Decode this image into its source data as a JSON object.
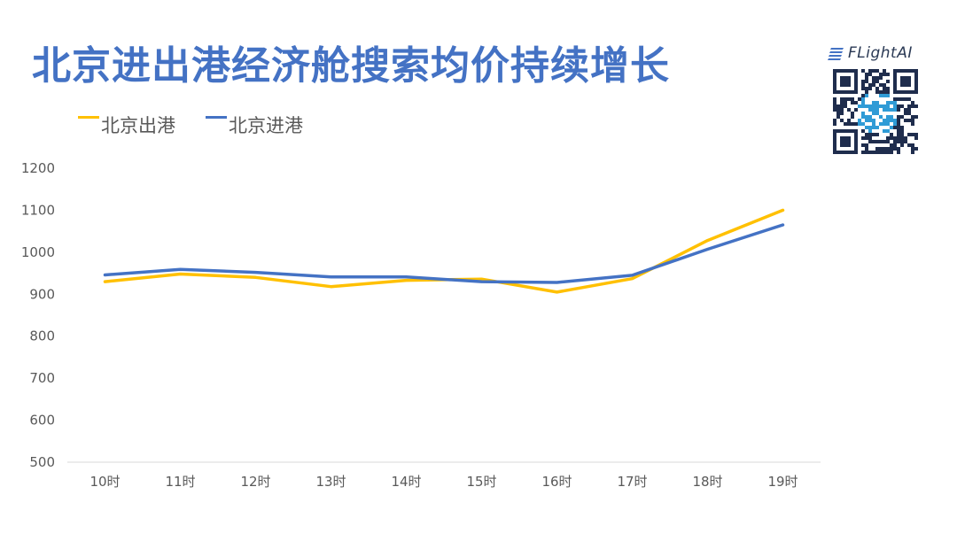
{
  "title": "北京进出港经济舱搜索均价持续增长",
  "brand": {
    "logo_text": "FLightAI",
    "accent": "#4472c4",
    "dark": "#2b3a55"
  },
  "chart_data": {
    "type": "line",
    "title": "北京进出港经济舱搜索均价持续增长",
    "xlabel": "",
    "ylabel": "",
    "categories": [
      "10时",
      "11时",
      "12时",
      "13时",
      "14时",
      "15时",
      "16时",
      "17时",
      "18时",
      "19时"
    ],
    "ylim": [
      500,
      1200
    ],
    "yticks": [
      500,
      600,
      700,
      800,
      900,
      1000,
      1100,
      1200
    ],
    "grid": false,
    "legend_position": "top-left",
    "series": [
      {
        "name": "北京出港",
        "color": "#ffc000",
        "values": [
          930,
          948,
          940,
          918,
          933,
          936,
          905,
          937,
          1028,
          1100
        ]
      },
      {
        "name": "北京进港",
        "color": "#4472c4",
        "values": [
          946,
          959,
          952,
          941,
          941,
          930,
          928,
          945,
          1007,
          1065
        ]
      }
    ]
  }
}
